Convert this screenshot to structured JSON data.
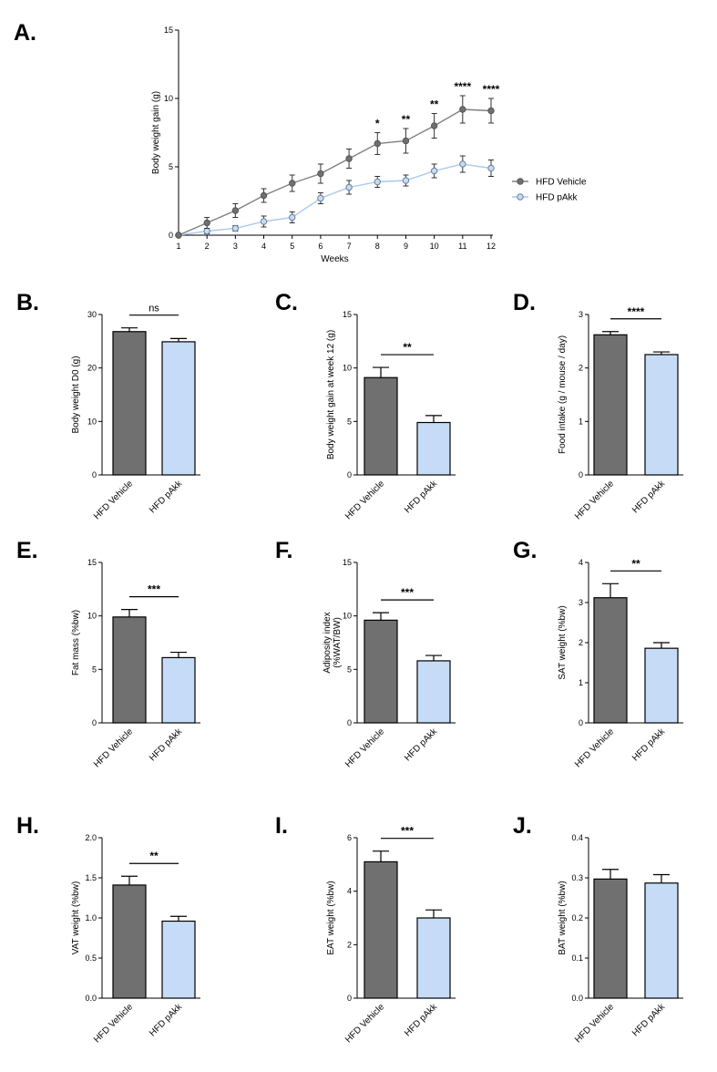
{
  "colors": {
    "vehicle": "#707070",
    "pakk": "#c6dcf6",
    "pakk_line": "#a9c9ec",
    "axis": "#000000"
  },
  "chart_data": [
    {
      "id": "A",
      "panel_letter": "A.",
      "type": "line",
      "xlabel": "Weeks",
      "ylabel": "Body weight gain (g)",
      "xlim": [
        1,
        12
      ],
      "ylim": [
        0,
        15
      ],
      "xticks": [
        1,
        2,
        3,
        4,
        5,
        6,
        7,
        8,
        9,
        10,
        11,
        12
      ],
      "yticks": [
        0,
        5,
        10,
        15
      ],
      "x": [
        1,
        2,
        3,
        4,
        5,
        6,
        7,
        8,
        9,
        10,
        11,
        12
      ],
      "series": [
        {
          "name": "HFD Vehicle",
          "values": [
            0,
            0.9,
            1.8,
            2.9,
            3.8,
            4.5,
            5.6,
            6.7,
            6.9,
            8.0,
            9.2,
            9.1
          ],
          "errors": [
            0,
            0.4,
            0.5,
            0.5,
            0.6,
            0.7,
            0.7,
            0.8,
            0.9,
            0.9,
            1.0,
            0.9
          ]
        },
        {
          "name": "HFD pAkk",
          "values": [
            0,
            0.3,
            0.5,
            1.0,
            1.3,
            2.7,
            3.5,
            3.9,
            4.0,
            4.7,
            5.2,
            4.9
          ],
          "errors": [
            0,
            0.2,
            0.2,
            0.4,
            0.4,
            0.4,
            0.5,
            0.4,
            0.4,
            0.5,
            0.6,
            0.6
          ]
        }
      ],
      "annotations": [
        {
          "x": 8,
          "text": "*"
        },
        {
          "x": 9,
          "text": "**"
        },
        {
          "x": 10,
          "text": "**"
        },
        {
          "x": 11,
          "text": "****"
        },
        {
          "x": 12,
          "text": "****"
        }
      ]
    },
    {
      "id": "B",
      "panel_letter": "B.",
      "type": "bar",
      "ylabel": "Body weight D0 (g)",
      "categories": [
        "HFD Vehicle",
        "HFD pAkk"
      ],
      "values": [
        26.8,
        24.9
      ],
      "errors": [
        0.7,
        0.6
      ],
      "ylim": [
        0,
        30
      ],
      "yticks": [
        0,
        10,
        20,
        30
      ],
      "sig": "ns"
    },
    {
      "id": "C",
      "panel_letter": "C.",
      "type": "bar",
      "ylabel": "Body weight gain at week 12 (g)",
      "categories": [
        "HFD Vehicle",
        "HFD pAkk"
      ],
      "values": [
        9.1,
        4.9
      ],
      "errors": [
        0.95,
        0.65
      ],
      "ylim": [
        0,
        15
      ],
      "yticks": [
        0,
        5,
        10,
        15
      ],
      "sig": "**"
    },
    {
      "id": "D",
      "panel_letter": "D.",
      "type": "bar",
      "ylabel": "Food intake (g / mouse / day)",
      "categories": [
        "HFD Vehicle",
        "HFD pAkk"
      ],
      "values": [
        2.62,
        2.25
      ],
      "errors": [
        0.06,
        0.05
      ],
      "ylim": [
        0,
        3
      ],
      "yticks": [
        0,
        1,
        2,
        3
      ],
      "sig": "****"
    },
    {
      "id": "E",
      "panel_letter": "E.",
      "type": "bar",
      "ylabel": "Fat mass (%bw)",
      "categories": [
        "HFD Vehicle",
        "HFD pAkk"
      ],
      "values": [
        9.9,
        6.1
      ],
      "errors": [
        0.7,
        0.5
      ],
      "ylim": [
        0,
        15
      ],
      "yticks": [
        0,
        5,
        10,
        15
      ],
      "sig": "***"
    },
    {
      "id": "F",
      "panel_letter": "F.",
      "type": "bar",
      "ylabel": "Adiposity index",
      "ylabel2": "(%WAT/BW)",
      "categories": [
        "HFD Vehicle",
        "HFD pAkk"
      ],
      "values": [
        9.6,
        5.8
      ],
      "errors": [
        0.7,
        0.5
      ],
      "ylim": [
        0,
        15
      ],
      "yticks": [
        0,
        5,
        10,
        15
      ],
      "sig": "***"
    },
    {
      "id": "G",
      "panel_letter": "G.",
      "type": "bar",
      "ylabel": "SAT weight (%bw)",
      "categories": [
        "HFD Vehicle",
        "HFD pAkk"
      ],
      "values": [
        3.12,
        1.86
      ],
      "errors": [
        0.35,
        0.14
      ],
      "ylim": [
        0,
        4
      ],
      "yticks": [
        0,
        1,
        2,
        3,
        4
      ],
      "sig": "**"
    },
    {
      "id": "H",
      "panel_letter": "H.",
      "type": "bar",
      "ylabel": "VAT weight (%bw)",
      "categories": [
        "HFD Vehicle",
        "HFD pAkk"
      ],
      "values": [
        1.41,
        0.96
      ],
      "errors": [
        0.11,
        0.06
      ],
      "ylim": [
        0,
        2
      ],
      "yticks": [
        0.0,
        0.5,
        1.0,
        1.5,
        2.0
      ],
      "ytick_labels": [
        "0.0",
        "0.5",
        "1.0",
        "1.5",
        "2.0"
      ],
      "sig": "**"
    },
    {
      "id": "I",
      "panel_letter": "I.",
      "type": "bar",
      "ylabel": "EAT weight (%bw)",
      "categories": [
        "HFD Vehicle",
        "HFD pAkk"
      ],
      "values": [
        5.1,
        3.0
      ],
      "errors": [
        0.4,
        0.3
      ],
      "ylim": [
        0,
        6
      ],
      "yticks": [
        0,
        2,
        4,
        6
      ],
      "sig": "***"
    },
    {
      "id": "J",
      "panel_letter": "J.",
      "type": "bar",
      "ylabel": "BAT weight (%bw)",
      "categories": [
        "HFD Vehicle",
        "HFD pAkk"
      ],
      "values": [
        0.297,
        0.287
      ],
      "errors": [
        0.024,
        0.021
      ],
      "ylim": [
        0,
        0.4
      ],
      "yticks": [
        0.0,
        0.1,
        0.2,
        0.3,
        0.4
      ],
      "ytick_labels": [
        "0.0",
        "0.1",
        "0.2",
        "0.3",
        "0.4"
      ],
      "sig": ""
    }
  ]
}
